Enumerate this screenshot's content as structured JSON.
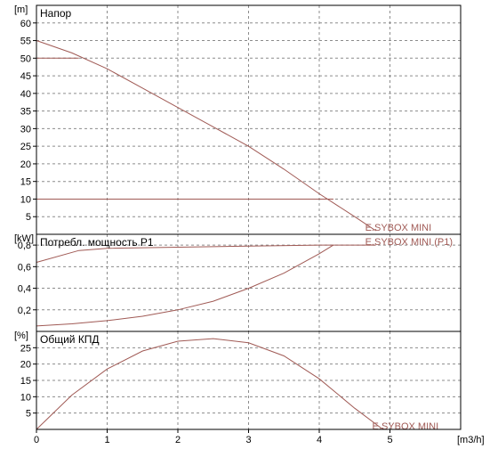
{
  "colors": {
    "curve": "#a05a55",
    "grid": "#8c8c8c",
    "axis": "#000000"
  },
  "x_axis": {
    "unit": "[m3/h]",
    "ticks": [
      0,
      1,
      2,
      3,
      4,
      5
    ],
    "range": [
      0,
      6
    ]
  },
  "chart_data": [
    {
      "type": "line",
      "title": "Напор",
      "y_unit": "[m]",
      "ylim": [
        0,
        65
      ],
      "yticks": [
        5,
        10,
        15,
        20,
        25,
        30,
        35,
        40,
        45,
        50,
        55,
        60
      ],
      "grid": true,
      "series": [
        {
          "name": "E.SYBOX MINI",
          "x": [
            0,
            0.5,
            1,
            1.5,
            2,
            2.5,
            3,
            3.5,
            4,
            4.5,
            4.8
          ],
          "y": [
            55,
            51.5,
            47,
            41.5,
            36,
            30.5,
            25,
            18.5,
            11.5,
            5,
            1
          ]
        },
        {
          "x": [
            0,
            0.6
          ],
          "y": [
            50,
            50
          ]
        },
        {
          "x": [
            0,
            4.2
          ],
          "y": [
            10,
            10
          ]
        }
      ]
    },
    {
      "type": "line",
      "title": "Потребл. мощность P1",
      "y_unit": "[kW]",
      "ylim": [
        0,
        0.9
      ],
      "yticks": [
        0.2,
        0.4,
        0.6,
        0.8
      ],
      "ytick_labels": [
        "0,2",
        "0,4",
        "0,6",
        "0,8"
      ],
      "grid": true,
      "series": [
        {
          "name": "E.SYBOX MINI (P1)",
          "x": [
            0,
            0.6,
            1,
            2,
            3,
            4,
            4.2,
            4.8
          ],
          "y": [
            0.64,
            0.75,
            0.77,
            0.78,
            0.79,
            0.8,
            0.8,
            0.8
          ]
        },
        {
          "x": [
            0,
            0.5,
            1,
            1.5,
            2,
            2.5,
            3,
            3.5,
            4,
            4.2
          ],
          "y": [
            0.05,
            0.07,
            0.1,
            0.14,
            0.2,
            0.28,
            0.4,
            0.54,
            0.72,
            0.8
          ]
        }
      ]
    },
    {
      "type": "line",
      "title": "Общий КПД",
      "y_unit": "[%]",
      "ylim": [
        0,
        30
      ],
      "yticks": [
        5,
        10,
        15,
        20,
        25
      ],
      "grid": true,
      "series": [
        {
          "name": "E.SYBOX MINI",
          "x": [
            0,
            0.5,
            1,
            1.5,
            2,
            2.5,
            3,
            3.5,
            4,
            4.5,
            4.9
          ],
          "y": [
            0,
            10.5,
            18.5,
            24,
            27,
            27.8,
            26.5,
            22.5,
            15.5,
            6.5,
            0
          ]
        }
      ]
    }
  ]
}
